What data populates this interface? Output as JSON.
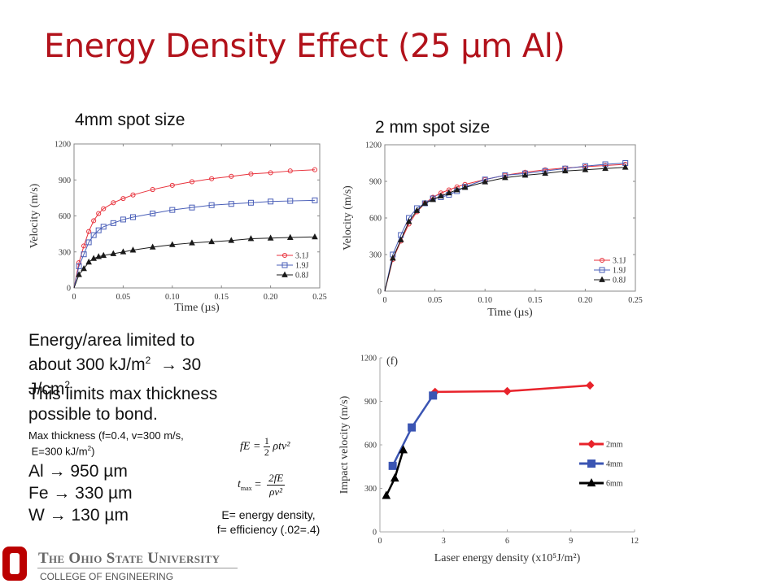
{
  "slide": {
    "title": "Energy Density Effect (25 µm Al)",
    "label_4mm": "4mm spot size",
    "label_2mm": "2 mm spot size",
    "accent_color": "#b2121b"
  },
  "text": {
    "line1": "Energy/area limited to",
    "line2": "about 300 kJ/m",
    "line2_sup": "2",
    "line2_tail": "  → 30",
    "line3": "J/cm",
    "line3_sup": "2",
    "line4": "This limits max thickness",
    "line5": "possible to bond.",
    "small1": "Max thickness (f=0.4, v=300 m/s,",
    "small2": " E=300 kJ/m",
    "small2_sup": "2",
    "small2_tail": ")",
    "al": "Al  → 950 µm",
    "fe": "Fe  → 330 µm",
    "w": "W → 130 µm"
  },
  "equations": {
    "eq1_left": "fE = ",
    "eq1_num": "1",
    "eq1_den": "2",
    "eq1_right": "ρtv²",
    "eq2_left": "t",
    "eq2_sub": "max",
    "eq2_eq": " = ",
    "eq2_num": "2fE",
    "eq2_den": "ρv²",
    "caption1": "E= energy density,",
    "caption2": "f= efficiency (.02=.4)"
  },
  "footer": {
    "university": "The Ohio State University",
    "college": "COLLEGE OF ENGINEERING",
    "logo_letter": "O",
    "logo_color": "#bb0000"
  },
  "chart_data": [
    {
      "id": "chart-4mm",
      "type": "line",
      "title": "4mm spot size",
      "xlabel": "Time (µs)",
      "ylabel": "Velocity (m/s)",
      "xlim": [
        0,
        0.25
      ],
      "ylim": [
        0,
        1200
      ],
      "xticks": [
        "0",
        "0.05",
        "0.10",
        "0.15",
        "0.20",
        "0.25"
      ],
      "yticks": [
        "0",
        "300",
        "600",
        "900",
        "1200"
      ],
      "legend_position": "bottom-right",
      "grid": false,
      "series": [
        {
          "name": "3.1J",
          "color": "#e8323c",
          "marker": "circle",
          "x": [
            0,
            0.005,
            0.01,
            0.015,
            0.02,
            0.025,
            0.03,
            0.04,
            0.05,
            0.06,
            0.08,
            0.1,
            0.12,
            0.14,
            0.16,
            0.18,
            0.2,
            0.22,
            0.245
          ],
          "y": [
            0,
            210,
            350,
            470,
            560,
            620,
            660,
            710,
            745,
            775,
            820,
            855,
            885,
            910,
            930,
            950,
            960,
            975,
            985
          ]
        },
        {
          "name": "1.9J",
          "color": "#4a5fb8",
          "marker": "square",
          "x": [
            0,
            0.005,
            0.01,
            0.015,
            0.02,
            0.025,
            0.03,
            0.04,
            0.05,
            0.06,
            0.08,
            0.1,
            0.12,
            0.14,
            0.16,
            0.18,
            0.2,
            0.22,
            0.245
          ],
          "y": [
            0,
            180,
            280,
            380,
            440,
            480,
            510,
            540,
            570,
            590,
            620,
            650,
            670,
            690,
            700,
            710,
            720,
            725,
            730
          ]
        },
        {
          "name": "0.8J",
          "color": "#1a1a1a",
          "marker": "triangle",
          "x": [
            0,
            0.005,
            0.01,
            0.015,
            0.02,
            0.025,
            0.03,
            0.04,
            0.05,
            0.06,
            0.08,
            0.1,
            0.12,
            0.14,
            0.16,
            0.18,
            0.2,
            0.22,
            0.245
          ],
          "y": [
            0,
            110,
            160,
            215,
            245,
            260,
            270,
            285,
            300,
            315,
            340,
            360,
            375,
            385,
            395,
            410,
            415,
            420,
            425
          ]
        }
      ]
    },
    {
      "id": "chart-2mm",
      "type": "line",
      "title": "2 mm spot size",
      "xlabel": "Time (µs)",
      "ylabel": "Velocity (m/s)",
      "xlim": [
        0,
        0.25
      ],
      "ylim": [
        0,
        1200
      ],
      "xticks": [
        "0",
        "0.05",
        "0.10",
        "0.15",
        "0.20",
        "0.25"
      ],
      "yticks": [
        "0",
        "300",
        "600",
        "900",
        "1200"
      ],
      "legend_position": "bottom-right",
      "grid": false,
      "series": [
        {
          "name": "3.1J",
          "color": "#e8323c",
          "marker": "circle",
          "x": [
            0,
            0.008,
            0.016,
            0.024,
            0.032,
            0.04,
            0.048,
            0.056,
            0.064,
            0.072,
            0.08,
            0.1,
            0.12,
            0.14,
            0.16,
            0.18,
            0.2,
            0.22,
            0.24
          ],
          "y": [
            0,
            260,
            410,
            550,
            650,
            720,
            770,
            805,
            830,
            855,
            875,
            915,
            950,
            975,
            995,
            1010,
            1020,
            1030,
            1040
          ]
        },
        {
          "name": "1.9J",
          "color": "#4a5fb8",
          "marker": "square",
          "x": [
            0,
            0.008,
            0.016,
            0.024,
            0.032,
            0.04,
            0.048,
            0.056,
            0.064,
            0.072,
            0.08,
            0.1,
            0.12,
            0.14,
            0.16,
            0.18,
            0.2,
            0.22,
            0.24
          ],
          "y": [
            0,
            300,
            460,
            600,
            680,
            720,
            760,
            770,
            790,
            820,
            855,
            915,
            950,
            965,
            985,
            1005,
            1025,
            1040,
            1050
          ]
        },
        {
          "name": "0.8J",
          "color": "#1a1a1a",
          "marker": "triangle",
          "x": [
            0,
            0.008,
            0.016,
            0.024,
            0.032,
            0.04,
            0.048,
            0.056,
            0.064,
            0.072,
            0.08,
            0.1,
            0.12,
            0.14,
            0.16,
            0.18,
            0.2,
            0.22,
            0.24
          ],
          "y": [
            0,
            270,
            420,
            570,
            660,
            720,
            750,
            780,
            805,
            830,
            850,
            895,
            930,
            950,
            965,
            985,
            995,
            1005,
            1015
          ]
        }
      ]
    },
    {
      "id": "chart-impact",
      "type": "line",
      "title": "(f)",
      "xlabel": "Laser energy density (x10⁵J/m²)",
      "ylabel": "Impact velocity (m/s)",
      "xlim": [
        0,
        12
      ],
      "ylim": [
        0,
        1200
      ],
      "xticks": [
        "0",
        "3",
        "6",
        "9",
        "12"
      ],
      "yticks": [
        "0",
        "300",
        "600",
        "900",
        "1200"
      ],
      "legend_position": "right",
      "grid": false,
      "series": [
        {
          "name": "2mm",
          "color": "#e8232b",
          "marker": "diamond",
          "x": [
            2.6,
            6.0,
            9.9
          ],
          "y": [
            965,
            970,
            1010
          ]
        },
        {
          "name": "4mm",
          "color": "#3b55b3",
          "marker": "square",
          "x": [
            0.6,
            1.5,
            2.5
          ],
          "y": [
            455,
            720,
            940
          ]
        },
        {
          "name": "6mm",
          "color": "#000000",
          "marker": "triangle",
          "x": [
            0.3,
            0.7,
            1.1
          ],
          "y": [
            250,
            370,
            565
          ]
        }
      ]
    }
  ]
}
